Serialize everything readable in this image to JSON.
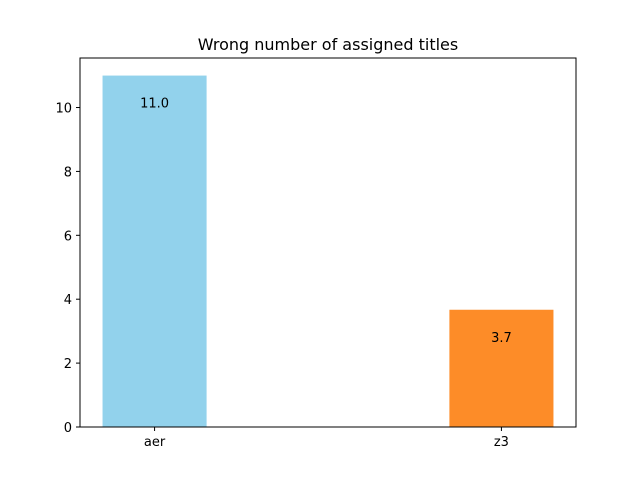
{
  "chart_data": {
    "type": "bar",
    "title": "Wrong number of assigned titles",
    "xlabel": "",
    "ylabel": "",
    "categories": [
      "aer",
      "z3"
    ],
    "values": [
      11.0,
      3.67
    ],
    "value_labels": [
      "11.0",
      "3.7"
    ],
    "colors": [
      "#92d2ec",
      "#fd8c28"
    ],
    "ylim": [
      0,
      11.55
    ],
    "yticks": [
      0,
      2,
      4,
      6,
      8,
      10
    ],
    "grid": false,
    "legend": "none"
  }
}
